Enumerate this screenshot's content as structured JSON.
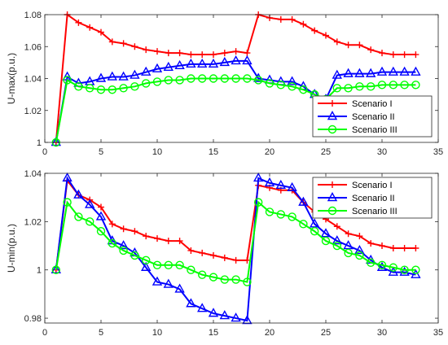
{
  "chart_data": [
    {
      "type": "line",
      "ylabel": "U-max(p.u.)",
      "xlim": [
        0,
        35
      ],
      "ylim": [
        1,
        1.08
      ],
      "xticks": [
        0,
        5,
        10,
        15,
        20,
        25,
        30,
        35
      ],
      "yticks": [
        1,
        1.02,
        1.04,
        1.06,
        1.08
      ],
      "ytick_labels": [
        "1",
        "1.02",
        "1.04",
        "1.06",
        "1.08"
      ],
      "grid": false,
      "legend": "bottom-right",
      "x": [
        1,
        2,
        3,
        4,
        5,
        6,
        7,
        8,
        9,
        10,
        11,
        12,
        13,
        14,
        15,
        16,
        17,
        18,
        19,
        20,
        21,
        22,
        23,
        24,
        25,
        26,
        27,
        28,
        29,
        30,
        31,
        32,
        33
      ],
      "series": [
        {
          "name": "Scenario I",
          "color": "#ff0000",
          "marker": "plus",
          "values": [
            1.0,
            1.08,
            1.075,
            1.072,
            1.069,
            1.063,
            1.062,
            1.06,
            1.058,
            1.057,
            1.056,
            1.056,
            1.055,
            1.055,
            1.055,
            1.056,
            1.057,
            1.056,
            1.08,
            1.078,
            1.077,
            1.077,
            1.074,
            1.07,
            1.067,
            1.063,
            1.061,
            1.061,
            1.058,
            1.056,
            1.055,
            1.055,
            1.055
          ]
        },
        {
          "name": "Scenario II",
          "color": "#0000ff",
          "marker": "triangle",
          "values": [
            1.0,
            1.041,
            1.037,
            1.038,
            1.04,
            1.041,
            1.041,
            1.042,
            1.044,
            1.046,
            1.047,
            1.048,
            1.049,
            1.049,
            1.049,
            1.05,
            1.051,
            1.051,
            1.04,
            1.039,
            1.038,
            1.038,
            1.035,
            1.03,
            1.027,
            1.042,
            1.043,
            1.043,
            1.043,
            1.044,
            1.044,
            1.044,
            1.044
          ]
        },
        {
          "name": "Scenario III",
          "color": "#00ff00",
          "marker": "circle",
          "values": [
            1.0,
            1.039,
            1.035,
            1.034,
            1.033,
            1.033,
            1.034,
            1.035,
            1.037,
            1.038,
            1.039,
            1.039,
            1.04,
            1.04,
            1.04,
            1.04,
            1.04,
            1.04,
            1.039,
            1.037,
            1.036,
            1.035,
            1.033,
            1.03,
            1.027,
            1.034,
            1.034,
            1.035,
            1.035,
            1.036,
            1.036,
            1.036,
            1.036
          ]
        }
      ]
    },
    {
      "type": "line",
      "ylabel": "U-min(p.u.)",
      "xlim": [
        0,
        35
      ],
      "ylim": [
        0.978,
        1.04
      ],
      "xticks": [
        0,
        5,
        10,
        15,
        20,
        25,
        30,
        35
      ],
      "yticks": [
        0.98,
        1,
        1.02,
        1.04
      ],
      "ytick_labels": [
        "0.98",
        "1",
        "1.02",
        "1.04"
      ],
      "grid": false,
      "legend": "top-right",
      "x": [
        1,
        2,
        3,
        4,
        5,
        6,
        7,
        8,
        9,
        10,
        11,
        12,
        13,
        14,
        15,
        16,
        17,
        18,
        19,
        20,
        21,
        22,
        23,
        24,
        25,
        26,
        27,
        28,
        29,
        30,
        31,
        32,
        33
      ],
      "series": [
        {
          "name": "Scenario I",
          "color": "#ff0000",
          "marker": "plus",
          "values": [
            1.0,
            1.037,
            1.031,
            1.029,
            1.026,
            1.019,
            1.017,
            1.016,
            1.014,
            1.013,
            1.012,
            1.012,
            1.008,
            1.007,
            1.006,
            1.005,
            1.004,
            1.004,
            1.035,
            1.034,
            1.033,
            1.033,
            1.028,
            1.024,
            1.021,
            1.018,
            1.015,
            1.014,
            1.011,
            1.01,
            1.009,
            1.009,
            1.009
          ]
        },
        {
          "name": "Scenario II",
          "color": "#0000ff",
          "marker": "triangle",
          "values": [
            1.0,
            1.038,
            1.031,
            1.027,
            1.022,
            1.012,
            1.01,
            1.007,
            1.001,
            0.995,
            0.994,
            0.992,
            0.986,
            0.984,
            0.982,
            0.981,
            0.98,
            0.979,
            1.038,
            1.036,
            1.035,
            1.034,
            1.028,
            1.019,
            1.015,
            1.012,
            1.01,
            1.008,
            1.004,
            1.001,
            0.999,
            0.999,
            0.998
          ]
        },
        {
          "name": "Scenario III",
          "color": "#00ff00",
          "marker": "circle",
          "values": [
            1.0,
            1.028,
            1.022,
            1.02,
            1.016,
            1.011,
            1.008,
            1.006,
            1.004,
            1.002,
            1.002,
            1.002,
            1.0,
            0.998,
            0.997,
            0.996,
            0.996,
            0.995,
            1.028,
            1.024,
            1.023,
            1.022,
            1.019,
            1.016,
            1.012,
            1.01,
            1.007,
            1.006,
            1.003,
            1.002,
            1.001,
            1.0,
            1.0
          ]
        }
      ]
    }
  ]
}
